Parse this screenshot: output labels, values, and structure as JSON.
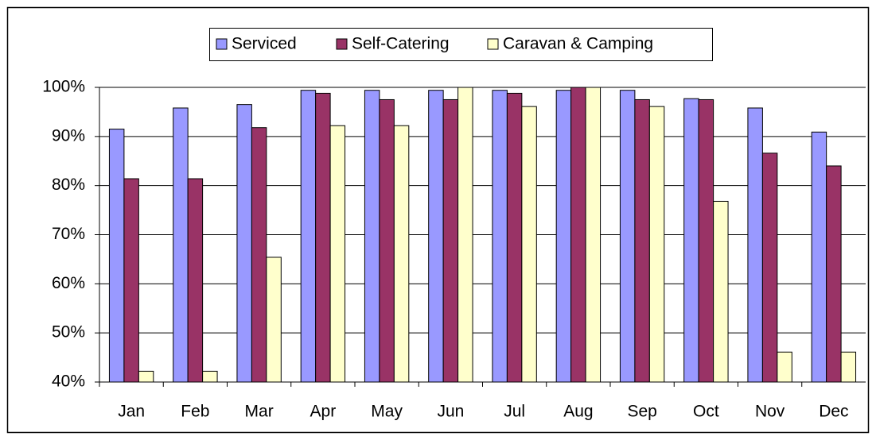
{
  "chart_data": {
    "type": "bar",
    "categories": [
      "Jan",
      "Feb",
      "Mar",
      "Apr",
      "May",
      "Jun",
      "Jul",
      "Aug",
      "Sep",
      "Oct",
      "Nov",
      "Dec"
    ],
    "series": [
      {
        "name": "Serviced",
        "color": "#9999ff",
        "values": [
          91.5,
          95.8,
          96.5,
          99.4,
          99.4,
          99.4,
          99.4,
          99.4,
          99.4,
          97.7,
          95.8,
          90.9
        ]
      },
      {
        "name": "Self-Catering",
        "color": "#993366",
        "values": [
          81.4,
          81.4,
          91.8,
          98.8,
          97.5,
          97.5,
          98.8,
          100,
          97.5,
          97.5,
          86.6,
          84.0
        ]
      },
      {
        "name": "Caravan & Camping",
        "color": "#ffffcc",
        "values": [
          42.2,
          42.2,
          65.4,
          92.2,
          92.2,
          100,
          96.1,
          100,
          96.1,
          76.8,
          46.1,
          46.1
        ]
      }
    ],
    "ylim": [
      40,
      100
    ],
    "yticks": [
      {
        "value": 40,
        "label": "40%"
      },
      {
        "value": 50,
        "label": "50%"
      },
      {
        "value": 60,
        "label": "60%"
      },
      {
        "value": 70,
        "label": "70%"
      },
      {
        "value": 80,
        "label": "80%"
      },
      {
        "value": 90,
        "label": "90%"
      },
      {
        "value": 100,
        "label": "100%"
      }
    ],
    "grid": true,
    "legend": "top"
  }
}
